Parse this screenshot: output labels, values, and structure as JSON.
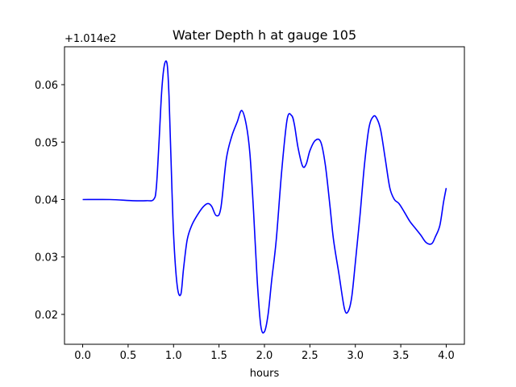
{
  "chart_data": {
    "type": "line",
    "title": "Water Depth h at gauge 105",
    "xlabel": "hours",
    "ylabel": "",
    "y_offset_label": "+1.014e2",
    "xlim": [
      -0.2,
      4.2
    ],
    "ylim": [
      0.0148,
      0.0666
    ],
    "x_ticks": [
      0.0,
      0.5,
      1.0,
      1.5,
      2.0,
      2.5,
      3.0,
      3.5,
      4.0
    ],
    "x_tick_labels": [
      "0.0",
      "0.5",
      "1.0",
      "1.5",
      "2.0",
      "2.5",
      "3.0",
      "3.5",
      "4.0"
    ],
    "y_ticks": [
      0.02,
      0.03,
      0.04,
      0.05,
      0.06
    ],
    "y_tick_labels": [
      "0.02",
      "0.03",
      "0.04",
      "0.05",
      "0.06"
    ],
    "grid": false,
    "series": [
      {
        "color": "#0000ff",
        "x": [
          0.0,
          0.3,
          0.55,
          0.7,
          0.78,
          0.81,
          0.84,
          0.87,
          0.9,
          0.93,
          0.95,
          0.97,
          1.0,
          1.04,
          1.08,
          1.11,
          1.15,
          1.2,
          1.27,
          1.33,
          1.38,
          1.42,
          1.47,
          1.52,
          1.58,
          1.64,
          1.7,
          1.75,
          1.8,
          1.84,
          1.88,
          1.92,
          1.96,
          2.0,
          2.04,
          2.08,
          2.13,
          2.19,
          2.25,
          2.3,
          2.33,
          2.37,
          2.42,
          2.46,
          2.5,
          2.56,
          2.62,
          2.67,
          2.72,
          2.76,
          2.82,
          2.88,
          2.92,
          2.96,
          3.0,
          3.05,
          3.1,
          3.15,
          3.2,
          3.24,
          3.28,
          3.33,
          3.38,
          3.43,
          3.48,
          3.54,
          3.6,
          3.66,
          3.72,
          3.78,
          3.84,
          3.88,
          3.93,
          3.97,
          4.0
        ],
        "y": [
          0.04,
          0.04,
          0.0398,
          0.0398,
          0.04,
          0.042,
          0.05,
          0.059,
          0.0635,
          0.0635,
          0.058,
          0.048,
          0.034,
          0.025,
          0.0235,
          0.028,
          0.033,
          0.0355,
          0.0375,
          0.0388,
          0.0393,
          0.0388,
          0.0372,
          0.0385,
          0.047,
          0.051,
          0.0535,
          0.0555,
          0.053,
          0.048,
          0.038,
          0.026,
          0.018,
          0.017,
          0.02,
          0.026,
          0.033,
          0.045,
          0.054,
          0.0546,
          0.053,
          0.049,
          0.0458,
          0.0462,
          0.0485,
          0.0503,
          0.05,
          0.046,
          0.039,
          0.033,
          0.027,
          0.021,
          0.0205,
          0.023,
          0.029,
          0.037,
          0.046,
          0.0525,
          0.0545,
          0.054,
          0.052,
          0.047,
          0.042,
          0.04,
          0.0393,
          0.0378,
          0.0362,
          0.035,
          0.0338,
          0.0325,
          0.0323,
          0.0335,
          0.0355,
          0.0395,
          0.042
        ]
      }
    ]
  }
}
